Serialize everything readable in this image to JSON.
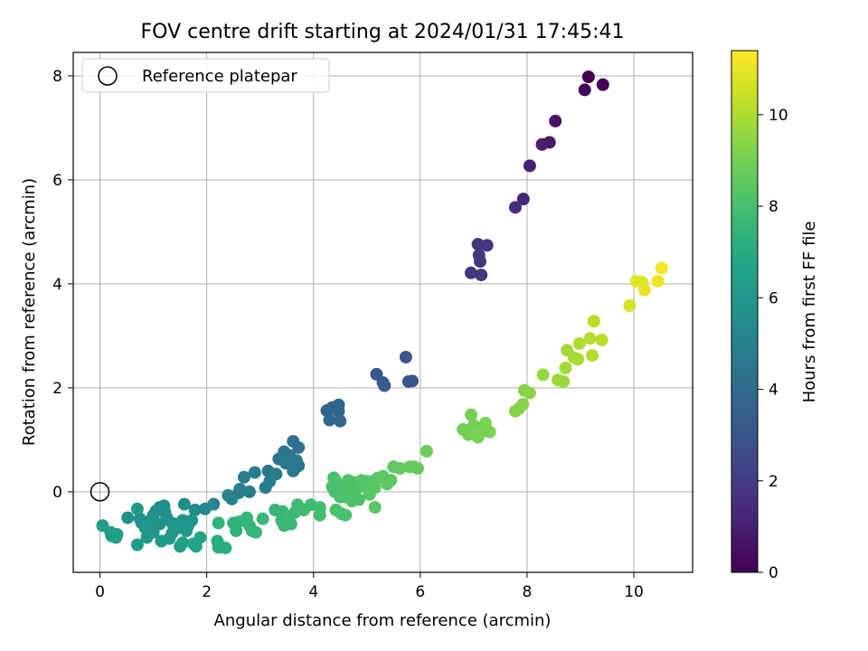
{
  "chart_data": {
    "type": "scatter",
    "title": "FOV centre drift starting at 2024/01/31 17:45:41",
    "xlabel": "Angular distance from reference (arcmin)",
    "ylabel": "Rotation from reference (arcmin)",
    "xlim": [
      -0.5,
      11.1
    ],
    "ylim": [
      -1.55,
      8.45
    ],
    "xticks": [
      0,
      2,
      4,
      6,
      8,
      10
    ],
    "yticks": [
      0,
      2,
      4,
      6,
      8
    ],
    "grid": true,
    "legend": {
      "position": "top-left",
      "entries": [
        "Reference platepar"
      ]
    },
    "reference_point": {
      "x": 0,
      "y": 0
    },
    "colorbar": {
      "label": "Hours from first FF file",
      "colormap": "viridis",
      "range": [
        0,
        11.4
      ],
      "ticks": [
        0,
        2,
        4,
        6,
        8,
        10
      ]
    },
    "series": [
      {
        "points": [
          {
            "x": 9.15,
            "y": 7.98,
            "c": 0.0
          },
          {
            "x": 9.42,
            "y": 7.83,
            "c": 0.1
          },
          {
            "x": 9.08,
            "y": 7.73,
            "c": 0.2
          },
          {
            "x": 8.53,
            "y": 7.13,
            "c": 0.6
          },
          {
            "x": 8.42,
            "y": 6.72,
            "c": 0.8
          },
          {
            "x": 8.28,
            "y": 6.68,
            "c": 0.9
          },
          {
            "x": 8.05,
            "y": 6.27,
            "c": 1.1
          },
          {
            "x": 7.93,
            "y": 5.63,
            "c": 1.3
          },
          {
            "x": 7.78,
            "y": 5.47,
            "c": 1.4
          },
          {
            "x": 7.08,
            "y": 4.76,
            "c": 1.7
          },
          {
            "x": 7.25,
            "y": 4.74,
            "c": 1.7
          },
          {
            "x": 7.1,
            "y": 4.55,
            "c": 1.8
          },
          {
            "x": 7.12,
            "y": 4.43,
            "c": 1.8
          },
          {
            "x": 6.95,
            "y": 4.21,
            "c": 1.9
          },
          {
            "x": 7.14,
            "y": 4.17,
            "c": 1.9
          },
          {
            "x": 5.73,
            "y": 2.59,
            "c": 3.0
          },
          {
            "x": 5.18,
            "y": 2.26,
            "c": 3.1
          },
          {
            "x": 5.3,
            "y": 2.1,
            "c": 3.2
          },
          {
            "x": 5.33,
            "y": 2.04,
            "c": 3.2
          },
          {
            "x": 5.78,
            "y": 2.12,
            "c": 3.1
          },
          {
            "x": 5.85,
            "y": 2.13,
            "c": 3.1
          },
          {
            "x": 4.47,
            "y": 1.67,
            "c": 3.6
          },
          {
            "x": 4.35,
            "y": 1.62,
            "c": 3.6
          },
          {
            "x": 4.25,
            "y": 1.56,
            "c": 3.7
          },
          {
            "x": 4.47,
            "y": 1.55,
            "c": 3.7
          },
          {
            "x": 4.3,
            "y": 1.38,
            "c": 3.8
          },
          {
            "x": 4.5,
            "y": 1.36,
            "c": 3.8
          },
          {
            "x": 3.62,
            "y": 0.97,
            "c": 4.3
          },
          {
            "x": 3.72,
            "y": 0.85,
            "c": 4.3
          },
          {
            "x": 3.45,
            "y": 0.77,
            "c": 4.4
          },
          {
            "x": 3.55,
            "y": 0.7,
            "c": 4.4
          },
          {
            "x": 3.35,
            "y": 0.63,
            "c": 4.5
          },
          {
            "x": 3.68,
            "y": 0.6,
            "c": 4.5
          },
          {
            "x": 3.48,
            "y": 0.55,
            "c": 4.5
          },
          {
            "x": 3.72,
            "y": 0.5,
            "c": 4.5
          },
          {
            "x": 3.62,
            "y": 0.4,
            "c": 4.6
          },
          {
            "x": 3.15,
            "y": 0.4,
            "c": 4.6
          },
          {
            "x": 2.9,
            "y": 0.37,
            "c": 4.7
          },
          {
            "x": 3.3,
            "y": 0.34,
            "c": 4.7
          },
          {
            "x": 2.7,
            "y": 0.28,
            "c": 4.8
          },
          {
            "x": 3.18,
            "y": 0.2,
            "c": 4.8
          },
          {
            "x": 3.1,
            "y": 0.08,
            "c": 4.9
          },
          {
            "x": 2.62,
            "y": 0.05,
            "c": 4.9
          },
          {
            "x": 2.8,
            "y": 0.0,
            "c": 4.9
          },
          {
            "x": 2.6,
            "y": -0.02,
            "c": 5.0
          },
          {
            "x": 2.4,
            "y": -0.07,
            "c": 5.0
          },
          {
            "x": 2.47,
            "y": -0.14,
            "c": 5.0
          },
          {
            "x": 2.13,
            "y": -0.24,
            "c": 5.2
          },
          {
            "x": 1.97,
            "y": -0.33,
            "c": 5.3
          },
          {
            "x": 1.58,
            "y": -0.24,
            "c": 5.5
          },
          {
            "x": 1.78,
            "y": -0.35,
            "c": 5.4
          },
          {
            "x": 1.2,
            "y": -0.27,
            "c": 5.5
          },
          {
            "x": 1.12,
            "y": -0.3,
            "c": 5.5
          },
          {
            "x": 1.05,
            "y": -0.37,
            "c": 5.6
          },
          {
            "x": 1.22,
            "y": -0.4,
            "c": 5.6
          },
          {
            "x": 1.0,
            "y": -0.45,
            "c": 5.6
          },
          {
            "x": 1.25,
            "y": -0.5,
            "c": 5.6
          },
          {
            "x": 0.95,
            "y": -0.55,
            "c": 5.7
          },
          {
            "x": 0.75,
            "y": -0.52,
            "c": 5.7
          },
          {
            "x": 0.52,
            "y": -0.5,
            "c": 5.8
          },
          {
            "x": 0.78,
            "y": -0.6,
            "c": 5.8
          },
          {
            "x": 0.92,
            "y": -0.65,
            "c": 5.8
          },
          {
            "x": 1.12,
            "y": -0.62,
            "c": 5.8
          },
          {
            "x": 1.35,
            "y": -0.6,
            "c": 5.8
          },
          {
            "x": 1.48,
            "y": -0.62,
            "c": 5.9
          },
          {
            "x": 1.55,
            "y": -0.55,
            "c": 5.9
          },
          {
            "x": 1.65,
            "y": -0.65,
            "c": 5.9
          },
          {
            "x": 1.72,
            "y": -0.55,
            "c": 5.9
          },
          {
            "x": 1.62,
            "y": -0.75,
            "c": 6.0
          },
          {
            "x": 1.35,
            "y": -0.8,
            "c": 6.0
          },
          {
            "x": 1.0,
            "y": -0.78,
            "c": 6.0
          },
          {
            "x": 0.85,
            "y": -0.7,
            "c": 6.0
          },
          {
            "x": 0.7,
            "y": -0.33,
            "c": 6.1
          },
          {
            "x": 1.45,
            "y": -0.7,
            "c": 6.0
          },
          {
            "x": 1.3,
            "y": -0.9,
            "c": 6.1
          },
          {
            "x": 1.15,
            "y": -0.95,
            "c": 6.1
          },
          {
            "x": 0.88,
            "y": -0.88,
            "c": 6.1
          },
          {
            "x": 0.7,
            "y": -1.02,
            "c": 6.2
          },
          {
            "x": 0.05,
            "y": -0.65,
            "c": 6.3
          },
          {
            "x": 0.2,
            "y": -0.78,
            "c": 6.3
          },
          {
            "x": 0.32,
            "y": -0.82,
            "c": 6.3
          },
          {
            "x": 0.22,
            "y": -0.85,
            "c": 6.3
          },
          {
            "x": 0.3,
            "y": -0.88,
            "c": 6.3
          },
          {
            "x": 1.55,
            "y": -0.98,
            "c": 6.5
          },
          {
            "x": 1.5,
            "y": -1.05,
            "c": 6.5
          },
          {
            "x": 1.75,
            "y": -1.0,
            "c": 6.6
          },
          {
            "x": 1.8,
            "y": -1.05,
            "c": 6.6
          },
          {
            "x": 1.88,
            "y": -0.88,
            "c": 6.6
          },
          {
            "x": 2.22,
            "y": -0.6,
            "c": 7.3
          },
          {
            "x": 2.2,
            "y": -0.95,
            "c": 7.1
          },
          {
            "x": 2.22,
            "y": -1.07,
            "c": 7.1
          },
          {
            "x": 2.35,
            "y": -1.08,
            "c": 7.1
          },
          {
            "x": 2.5,
            "y": -0.6,
            "c": 7.4
          },
          {
            "x": 2.6,
            "y": -0.58,
            "c": 7.4
          },
          {
            "x": 2.55,
            "y": -0.75,
            "c": 7.3
          },
          {
            "x": 2.75,
            "y": -0.5,
            "c": 7.5
          },
          {
            "x": 2.8,
            "y": -0.65,
            "c": 7.5
          },
          {
            "x": 2.85,
            "y": -0.75,
            "c": 7.5
          },
          {
            "x": 2.92,
            "y": -0.78,
            "c": 7.5
          },
          {
            "x": 3.05,
            "y": -0.52,
            "c": 7.6
          },
          {
            "x": 3.28,
            "y": -0.35,
            "c": 7.6
          },
          {
            "x": 3.42,
            "y": -0.38,
            "c": 7.6
          },
          {
            "x": 3.4,
            "y": -0.55,
            "c": 7.6
          },
          {
            "x": 3.45,
            "y": -0.65,
            "c": 7.6
          },
          {
            "x": 3.55,
            "y": -0.48,
            "c": 7.7
          },
          {
            "x": 3.65,
            "y": -0.4,
            "c": 7.7
          },
          {
            "x": 3.58,
            "y": -0.62,
            "c": 7.7
          },
          {
            "x": 3.7,
            "y": -0.25,
            "c": 7.8
          },
          {
            "x": 3.82,
            "y": -0.35,
            "c": 7.8
          },
          {
            "x": 3.95,
            "y": -0.25,
            "c": 7.8
          },
          {
            "x": 4.12,
            "y": -0.3,
            "c": 7.9
          },
          {
            "x": 4.12,
            "y": -0.45,
            "c": 7.9
          },
          {
            "x": 4.38,
            "y": 0.27,
            "c": 8.1
          },
          {
            "x": 4.42,
            "y": 0.2,
            "c": 8.1
          },
          {
            "x": 4.35,
            "y": 0.1,
            "c": 8.1
          },
          {
            "x": 4.4,
            "y": 0.0,
            "c": 8.1
          },
          {
            "x": 4.5,
            "y": -0.1,
            "c": 8.1
          },
          {
            "x": 4.55,
            "y": 0.05,
            "c": 8.2
          },
          {
            "x": 4.6,
            "y": 0.12,
            "c": 8.2
          },
          {
            "x": 4.65,
            "y": 0.22,
            "c": 8.2
          },
          {
            "x": 4.7,
            "y": -0.05,
            "c": 8.2
          },
          {
            "x": 4.75,
            "y": 0.18,
            "c": 8.2
          },
          {
            "x": 4.8,
            "y": 0.05,
            "c": 8.2
          },
          {
            "x": 4.85,
            "y": -0.15,
            "c": 8.2
          },
          {
            "x": 4.9,
            "y": 0.22,
            "c": 8.3
          },
          {
            "x": 4.95,
            "y": 0.1,
            "c": 8.3
          },
          {
            "x": 4.6,
            "y": -0.1,
            "c": 8.2
          },
          {
            "x": 4.72,
            "y": -0.18,
            "c": 8.2
          },
          {
            "x": 4.42,
            "y": -0.35,
            "c": 8.1
          },
          {
            "x": 4.52,
            "y": -0.42,
            "c": 8.1
          },
          {
            "x": 4.6,
            "y": -0.45,
            "c": 8.1
          },
          {
            "x": 5.0,
            "y": 0.2,
            "c": 8.3
          },
          {
            "x": 5.1,
            "y": 0.2,
            "c": 8.3
          },
          {
            "x": 5.15,
            "y": 0.08,
            "c": 8.4
          },
          {
            "x": 5.05,
            "y": -0.05,
            "c": 8.4
          },
          {
            "x": 5.15,
            "y": -0.3,
            "c": 8.4
          },
          {
            "x": 5.2,
            "y": 0.26,
            "c": 8.4
          },
          {
            "x": 5.3,
            "y": 0.3,
            "c": 8.5
          },
          {
            "x": 5.38,
            "y": 0.15,
            "c": 8.5
          },
          {
            "x": 5.45,
            "y": 0.22,
            "c": 8.5
          },
          {
            "x": 5.5,
            "y": 0.48,
            "c": 8.6
          },
          {
            "x": 5.62,
            "y": 0.45,
            "c": 8.6
          },
          {
            "x": 5.8,
            "y": 0.48,
            "c": 8.6
          },
          {
            "x": 5.88,
            "y": 0.48,
            "c": 8.7
          },
          {
            "x": 5.95,
            "y": 0.45,
            "c": 8.7
          },
          {
            "x": 6.12,
            "y": 0.78,
            "c": 8.8
          },
          {
            "x": 6.8,
            "y": 1.2,
            "c": 9.0
          },
          {
            "x": 6.9,
            "y": 1.1,
            "c": 9.0
          },
          {
            "x": 6.95,
            "y": 1.48,
            "c": 9.0
          },
          {
            "x": 7.0,
            "y": 1.28,
            "c": 9.0
          },
          {
            "x": 7.08,
            "y": 1.05,
            "c": 9.1
          },
          {
            "x": 7.15,
            "y": 1.15,
            "c": 9.1
          },
          {
            "x": 7.22,
            "y": 1.32,
            "c": 9.1
          },
          {
            "x": 7.3,
            "y": 1.15,
            "c": 9.1
          },
          {
            "x": 7.78,
            "y": 1.55,
            "c": 9.3
          },
          {
            "x": 7.85,
            "y": 1.6,
            "c": 9.3
          },
          {
            "x": 7.92,
            "y": 1.68,
            "c": 9.3
          },
          {
            "x": 7.95,
            "y": 1.95,
            "c": 9.3
          },
          {
            "x": 8.05,
            "y": 1.9,
            "c": 9.4
          },
          {
            "x": 8.3,
            "y": 2.25,
            "c": 9.6
          },
          {
            "x": 8.58,
            "y": 2.15,
            "c": 9.7
          },
          {
            "x": 8.68,
            "y": 2.12,
            "c": 9.7
          },
          {
            "x": 8.72,
            "y": 2.38,
            "c": 9.8
          },
          {
            "x": 8.75,
            "y": 2.72,
            "c": 9.8
          },
          {
            "x": 8.88,
            "y": 2.58,
            "c": 9.9
          },
          {
            "x": 8.95,
            "y": 2.55,
            "c": 9.9
          },
          {
            "x": 8.98,
            "y": 2.85,
            "c": 10.0
          },
          {
            "x": 9.18,
            "y": 2.95,
            "c": 10.1
          },
          {
            "x": 9.22,
            "y": 2.62,
            "c": 10.1
          },
          {
            "x": 9.25,
            "y": 3.28,
            "c": 10.2
          },
          {
            "x": 9.4,
            "y": 2.92,
            "c": 10.2
          },
          {
            "x": 9.92,
            "y": 3.58,
            "c": 10.7
          },
          {
            "x": 10.05,
            "y": 4.05,
            "c": 10.9
          },
          {
            "x": 10.15,
            "y": 4.03,
            "c": 10.9
          },
          {
            "x": 10.2,
            "y": 3.88,
            "c": 11.0
          },
          {
            "x": 10.45,
            "y": 4.05,
            "c": 11.1
          },
          {
            "x": 10.52,
            "y": 4.3,
            "c": 11.2
          }
        ]
      }
    ]
  }
}
